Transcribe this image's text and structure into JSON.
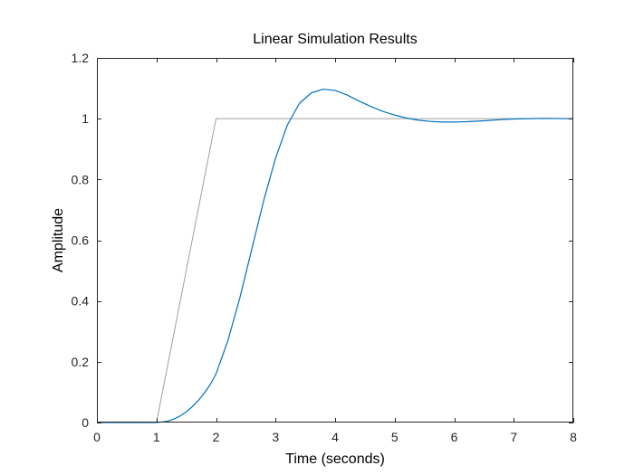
{
  "chart_data": {
    "type": "line",
    "title": "Linear Simulation Results",
    "xlabel": "Time (seconds)",
    "ylabel": "Amplitude",
    "xlim": [
      0,
      8
    ],
    "ylim": [
      0,
      1.2
    ],
    "xticks": [
      0,
      1,
      2,
      3,
      4,
      5,
      6,
      7,
      8
    ],
    "xtick_labels": [
      "0",
      "1",
      "2",
      "3",
      "4",
      "5",
      "6",
      "7",
      "8"
    ],
    "yticks": [
      0,
      0.2,
      0.4,
      0.6,
      0.8,
      1,
      1.2
    ],
    "ytick_labels": [
      "0",
      "0.2",
      "0.4",
      "0.6",
      "0.8",
      "1",
      "1.2"
    ],
    "grid": false,
    "series": [
      {
        "color": "#a0a0a0",
        "x": [
          0,
          1,
          2,
          8
        ],
        "y": [
          0,
          0,
          1,
          1
        ]
      },
      {
        "color": "#0072bd",
        "x": [
          0,
          1.0,
          1.1,
          1.2,
          1.3,
          1.4,
          1.5,
          1.6,
          1.7,
          1.8,
          1.9,
          2.0,
          2.2,
          2.4,
          2.6,
          2.8,
          3.0,
          3.2,
          3.4,
          3.6,
          3.8,
          4.0,
          4.2,
          4.4,
          4.6,
          4.8,
          5.0,
          5.2,
          5.4,
          5.6,
          5.8,
          6.0,
          6.2,
          6.5,
          6.8,
          7.0,
          7.5,
          8.0
        ],
        "y": [
          0,
          0,
          0.002,
          0.005,
          0.012,
          0.022,
          0.035,
          0.052,
          0.072,
          0.096,
          0.124,
          0.16,
          0.27,
          0.41,
          0.57,
          0.73,
          0.87,
          0.98,
          1.05,
          1.085,
          1.097,
          1.093,
          1.078,
          1.058,
          1.04,
          1.024,
          1.012,
          1.002,
          0.995,
          0.991,
          0.989,
          0.989,
          0.99,
          0.993,
          0.997,
          0.999,
          1.001,
          1.0
        ]
      }
    ]
  }
}
